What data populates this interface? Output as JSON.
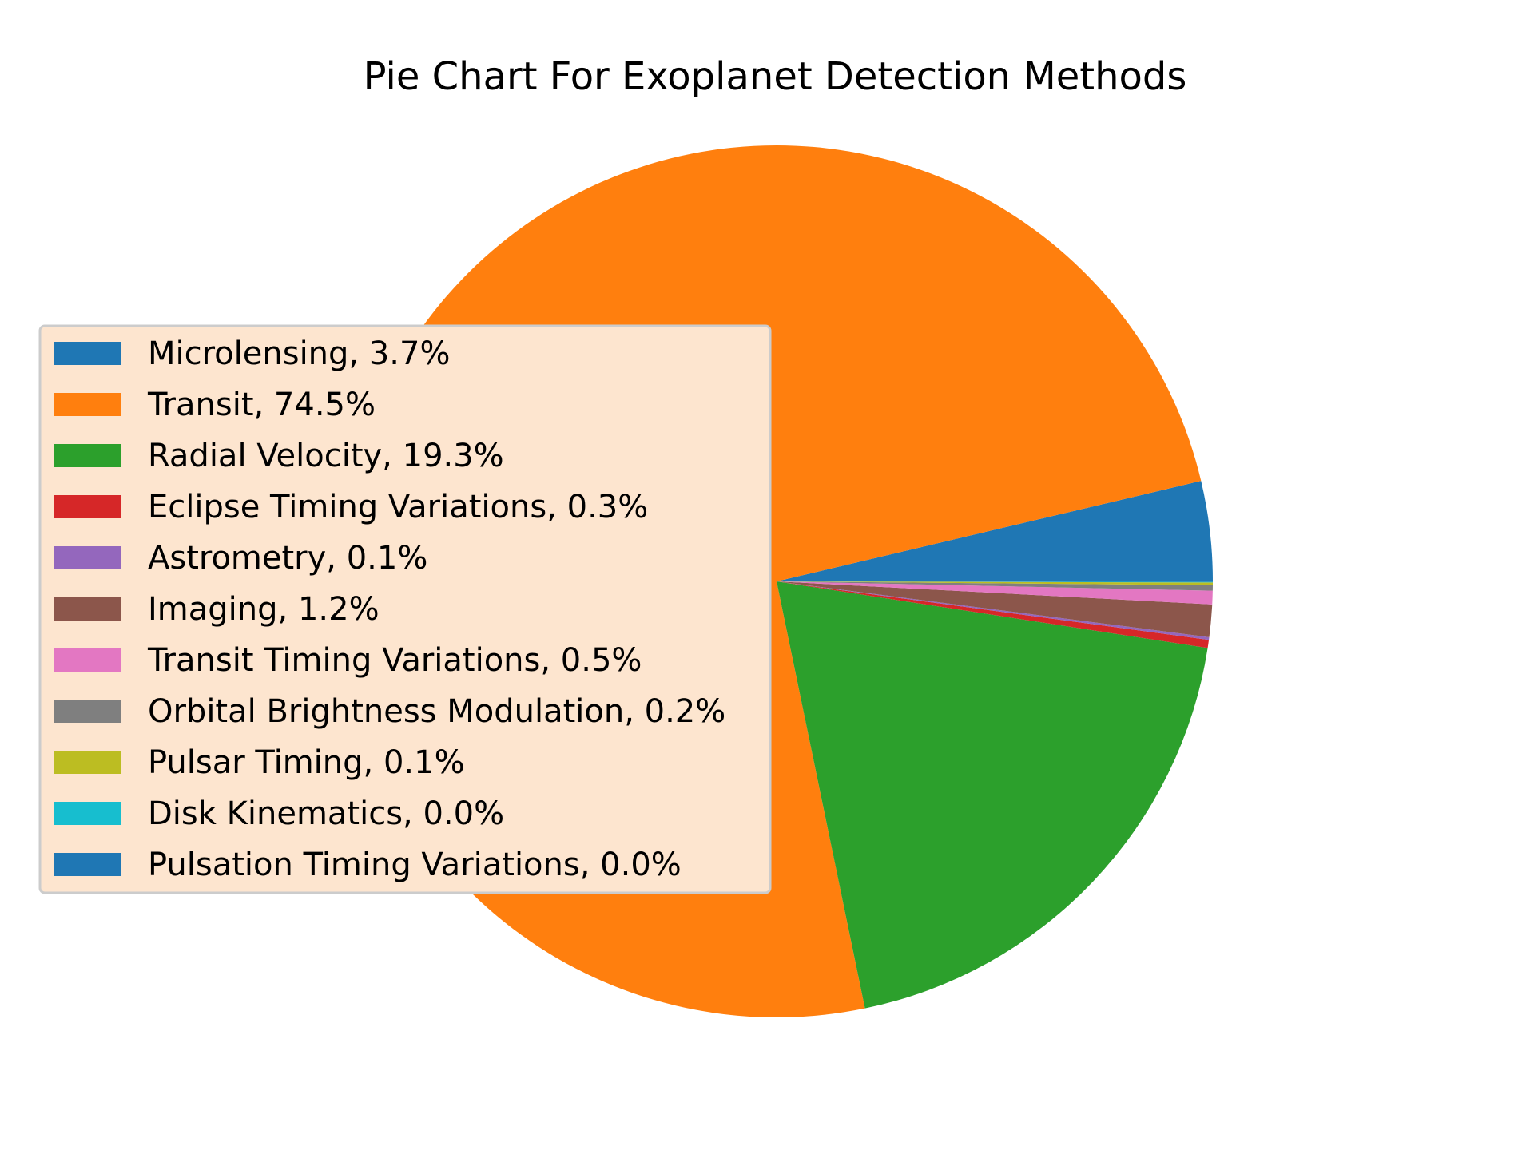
{
  "chart_data": {
    "type": "pie",
    "title": "Pie Chart For Exoplanet Detection Methods",
    "start_angle_deg": 0,
    "direction": "counterclockwise",
    "legend_position": "center-left",
    "slices": [
      {
        "label": "Microlensing, 3.7%",
        "value": 3.7,
        "color": "#1f77b4"
      },
      {
        "label": "Transit, 74.5%",
        "value": 74.5,
        "color": "#ff7f0e"
      },
      {
        "label": "Radial Velocity, 19.3%",
        "value": 19.3,
        "color": "#2ca02c"
      },
      {
        "label": "Eclipse Timing Variations, 0.3%",
        "value": 0.3,
        "color": "#d62728"
      },
      {
        "label": "Astrometry, 0.1%",
        "value": 0.1,
        "color": "#9467bd"
      },
      {
        "label": "Imaging, 1.2%",
        "value": 1.2,
        "color": "#8c564b"
      },
      {
        "label": "Transit Timing Variations, 0.5%",
        "value": 0.5,
        "color": "#e377c2"
      },
      {
        "label": "Orbital Brightness Modulation, 0.2%",
        "value": 0.2,
        "color": "#7f7f7f"
      },
      {
        "label": "Pulsar Timing, 0.1%",
        "value": 0.1,
        "color": "#bcbd22"
      },
      {
        "label": "Disk Kinematics, 0.0%",
        "value": 0.02,
        "color": "#17becf"
      },
      {
        "label": "Pulsation Timing Variations, 0.0%",
        "value": 0.02,
        "color": "#1f77b4"
      }
    ]
  }
}
